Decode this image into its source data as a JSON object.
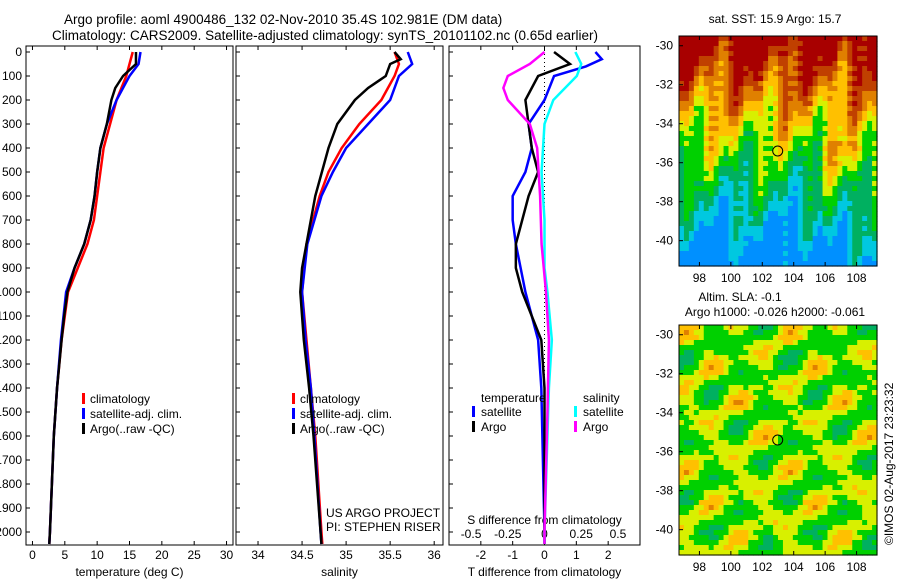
{
  "header": {
    "title": "Argo profile: aoml 4900486_132 02-Nov-2010 35.4S 102.981E (DM data)",
    "subtitle": "Climatology: CARS2009. Satellite-adjusted climatology: synTS_20101102.nc (0.65d earlier)"
  },
  "footer": {
    "project": "US ARGO PROJECT",
    "pi": "PI: STEPHEN RISER",
    "stamp": "©IMOS 02-Aug-2017 23:23:32"
  },
  "colors": {
    "climatology": "#ff0000",
    "satellite": "#0000ff",
    "argo": "#000000",
    "s_satellite": "#00ffff",
    "s_argo": "#ff00ff"
  },
  "chart_data": [
    {
      "type": "line",
      "id": "temperature",
      "xlabel": "temperature (deg C)",
      "xlim": [
        -1,
        31
      ],
      "ylim": [
        0,
        2050
      ],
      "yticks": [
        "0",
        "100",
        "200",
        "300",
        "400",
        "500",
        "600",
        "700",
        "800",
        "900",
        "1000",
        "1100",
        "1200",
        "1300",
        "1400",
        "1500",
        "1600",
        "1700",
        "1800",
        "1900",
        "2000"
      ],
      "xticks": [
        "0",
        "5",
        "10",
        "15",
        "20",
        "25",
        "30"
      ],
      "legend": [
        "climatology",
        "satellite-adj. clim.",
        "Argo(..raw -QC)"
      ],
      "series": [
        {
          "name": "climatology",
          "color": "#ff0000",
          "points": [
            [
              0,
              15.5
            ],
            [
              50,
              15
            ],
            [
              100,
              14.5
            ],
            [
              200,
              13
            ],
            [
              300,
              12
            ],
            [
              400,
              11
            ],
            [
              500,
              10.5
            ],
            [
              600,
              10
            ],
            [
              700,
              9.5
            ],
            [
              800,
              8.5
            ],
            [
              900,
              7
            ],
            [
              1000,
              5.5
            ],
            [
              1100,
              5
            ],
            [
              1200,
              4.5
            ],
            [
              1400,
              3.8
            ],
            [
              1600,
              3.3
            ],
            [
              1800,
              3
            ],
            [
              2000,
              2.7
            ],
            [
              2050,
              2.6
            ]
          ]
        },
        {
          "name": "satellite-adj. clim.",
          "color": "#0000ff",
          "points": [
            [
              0,
              16.7
            ],
            [
              50,
              16.4
            ],
            [
              100,
              15
            ],
            [
              200,
              13
            ],
            [
              300,
              11.5
            ],
            [
              400,
              10.5
            ],
            [
              500,
              10
            ],
            [
              600,
              9.6
            ],
            [
              700,
              9
            ],
            [
              800,
              8
            ],
            [
              900,
              6.5
            ],
            [
              1000,
              5.2
            ],
            [
              1100,
              4.8
            ],
            [
              1200,
              4.4
            ],
            [
              1400,
              3.8
            ],
            [
              1600,
              3.3
            ],
            [
              1800,
              3
            ],
            [
              2000,
              2.7
            ],
            [
              2050,
              2.6
            ]
          ]
        },
        {
          "name": "Argo(..raw -QC)",
          "color": "#000000",
          "points": [
            [
              0,
              16
            ],
            [
              50,
              16
            ],
            [
              100,
              14
            ],
            [
              150,
              12.8
            ],
            [
              200,
              12.2
            ],
            [
              300,
              11.5
            ],
            [
              400,
              10.5
            ],
            [
              500,
              10
            ],
            [
              600,
              9.6
            ],
            [
              700,
              9
            ],
            [
              800,
              8
            ],
            [
              900,
              6.5
            ],
            [
              1000,
              5.4
            ],
            [
              1100,
              4.9
            ],
            [
              1200,
              4.5
            ],
            [
              1400,
              3.8
            ],
            [
              1600,
              3.3
            ],
            [
              1800,
              3
            ],
            [
              2000,
              2.7
            ],
            [
              2050,
              2.6
            ]
          ]
        }
      ]
    },
    {
      "type": "line",
      "id": "salinity",
      "xlabel": "salinity",
      "xlim": [
        33.75,
        36.1
      ],
      "ylim": [
        0,
        2050
      ],
      "xticks": [
        "34",
        "34.5",
        "35",
        "35.5",
        "36"
      ],
      "legend": [
        "climatology",
        "satellite-adj. clim.",
        "Argo(..raw -QC)"
      ],
      "series": [
        {
          "name": "climatology",
          "color": "#ff0000",
          "points": [
            [
              0,
              35.55
            ],
            [
              50,
              35.6
            ],
            [
              100,
              35.55
            ],
            [
              200,
              35.4
            ],
            [
              300,
              35.15
            ],
            [
              400,
              34.95
            ],
            [
              500,
              34.8
            ],
            [
              600,
              34.7
            ],
            [
              800,
              34.55
            ],
            [
              1000,
              34.5
            ],
            [
              1200,
              34.55
            ],
            [
              1400,
              34.6
            ],
            [
              1600,
              34.65
            ],
            [
              2000,
              34.72
            ],
            [
              2050,
              34.73
            ]
          ]
        },
        {
          "name": "satellite-adj. clim.",
          "color": "#0000ff",
          "points": [
            [
              0,
              35.7
            ],
            [
              50,
              35.75
            ],
            [
              100,
              35.6
            ],
            [
              200,
              35.5
            ],
            [
              300,
              35.25
            ],
            [
              400,
              35.0
            ],
            [
              500,
              34.85
            ],
            [
              600,
              34.72
            ],
            [
              800,
              34.56
            ],
            [
              1000,
              34.5
            ],
            [
              1200,
              34.54
            ],
            [
              1400,
              34.6
            ],
            [
              1600,
              34.64
            ],
            [
              2000,
              34.71
            ],
            [
              2050,
              34.72
            ]
          ]
        },
        {
          "name": "Argo(..raw -QC)",
          "color": "#000000",
          "points": [
            [
              0,
              35.55
            ],
            [
              30,
              35.62
            ],
            [
              50,
              35.5
            ],
            [
              100,
              35.45
            ],
            [
              150,
              35.25
            ],
            [
              200,
              35.1
            ],
            [
              300,
              34.9
            ],
            [
              400,
              34.8
            ],
            [
              600,
              34.65
            ],
            [
              800,
              34.55
            ],
            [
              900,
              34.5
            ],
            [
              1000,
              34.48
            ],
            [
              1200,
              34.52
            ],
            [
              1400,
              34.58
            ],
            [
              1600,
              34.63
            ],
            [
              2000,
              34.71
            ],
            [
              2050,
              34.72
            ]
          ]
        }
      ]
    },
    {
      "type": "line",
      "id": "difference",
      "xlabel": "T difference from climatology",
      "x2label": "S difference from climatology",
      "xlim": [
        -3,
        3
      ],
      "x2lim": [
        -0.65,
        0.65
      ],
      "ylim": [
        0,
        2050
      ],
      "xticks": [
        "-2",
        "-1",
        "0",
        "1",
        "2"
      ],
      "x2ticks": [
        "-0.5",
        "-0.25",
        "0",
        "0.25",
        "0.5"
      ],
      "legend": {
        "temperature_title": "temperature",
        "salinity_title": "salinity",
        "items": [
          "satellite",
          "Argo",
          "satellite",
          "Argo"
        ]
      },
      "series": [
        {
          "name": "T satellite",
          "axis": "T",
          "color": "#0000ff",
          "points": [
            [
              0,
              1.6
            ],
            [
              30,
              1.8
            ],
            [
              60,
              1.3
            ],
            [
              100,
              0.3
            ],
            [
              200,
              0
            ],
            [
              300,
              -0.5
            ],
            [
              400,
              -0.4
            ],
            [
              500,
              -0.6
            ],
            [
              600,
              -1.0
            ],
            [
              700,
              -1.0
            ],
            [
              800,
              -0.9
            ],
            [
              1000,
              -0.6
            ],
            [
              1200,
              -0.2
            ],
            [
              1400,
              -0.1
            ],
            [
              2000,
              0
            ],
            [
              2050,
              0
            ]
          ]
        },
        {
          "name": "T Argo",
          "axis": "T",
          "color": "#000000",
          "points": [
            [
              0,
              0.3
            ],
            [
              50,
              0.8
            ],
            [
              100,
              -0.2
            ],
            [
              200,
              -0.6
            ],
            [
              300,
              -0.5
            ],
            [
              400,
              -0.4
            ],
            [
              500,
              -0.2
            ],
            [
              600,
              -0.5
            ],
            [
              800,
              -0.9
            ],
            [
              900,
              -0.9
            ],
            [
              1000,
              -0.7
            ],
            [
              1100,
              -0.4
            ],
            [
              1200,
              -0.1
            ],
            [
              1400,
              0
            ],
            [
              2000,
              0
            ],
            [
              2050,
              0
            ]
          ]
        },
        {
          "name": "S satellite",
          "axis": "S",
          "color": "#00ffff",
          "points": [
            [
              0,
              0.21
            ],
            [
              50,
              0.25
            ],
            [
              100,
              0.22
            ],
            [
              200,
              0.06
            ],
            [
              300,
              0.0
            ],
            [
              500,
              -0.02
            ],
            [
              700,
              0
            ],
            [
              900,
              0.0
            ],
            [
              1000,
              0.02
            ],
            [
              1200,
              0.05
            ],
            [
              1400,
              0.03
            ],
            [
              2000,
              0
            ],
            [
              2050,
              0
            ]
          ]
        },
        {
          "name": "S Argo",
          "axis": "S",
          "color": "#ff00ff",
          "points": [
            [
              0,
              0.0
            ],
            [
              50,
              -0.1
            ],
            [
              100,
              -0.25
            ],
            [
              150,
              -0.28
            ],
            [
              200,
              -0.25
            ],
            [
              300,
              -0.1
            ],
            [
              400,
              -0.05
            ],
            [
              600,
              -0.03
            ],
            [
              800,
              -0.02
            ],
            [
              1000,
              0.01
            ],
            [
              1200,
              0.03
            ],
            [
              1500,
              0.02
            ],
            [
              2000,
              0
            ],
            [
              2050,
              0
            ]
          ]
        }
      ]
    },
    {
      "type": "heatmap",
      "id": "sst-map",
      "title": "sat. SST: 15.9 Argo: 15.7",
      "xlim": [
        96.7,
        109.3
      ],
      "ylim": [
        -41.3,
        -29.5
      ],
      "xticks": [
        "98",
        "100",
        "102",
        "104",
        "106",
        "108"
      ],
      "yticks": [
        "-30",
        "-32",
        "-34",
        "-36",
        "-38",
        "-40"
      ],
      "marker": [
        102.981,
        -35.4
      ]
    },
    {
      "type": "heatmap",
      "id": "sla-map",
      "title": "Altim. SLA: -0.1",
      "subtitle": "Argo h1000: -0.026 h2000: -0.061",
      "xlim": [
        96.7,
        109.3
      ],
      "ylim": [
        -41.3,
        -29.5
      ],
      "xticks": [
        "98",
        "100",
        "102",
        "104",
        "106",
        "108"
      ],
      "yticks": [
        "-30",
        "-32",
        "-34",
        "-36",
        "-38",
        "-40"
      ],
      "marker": [
        102.981,
        -35.4
      ]
    }
  ]
}
